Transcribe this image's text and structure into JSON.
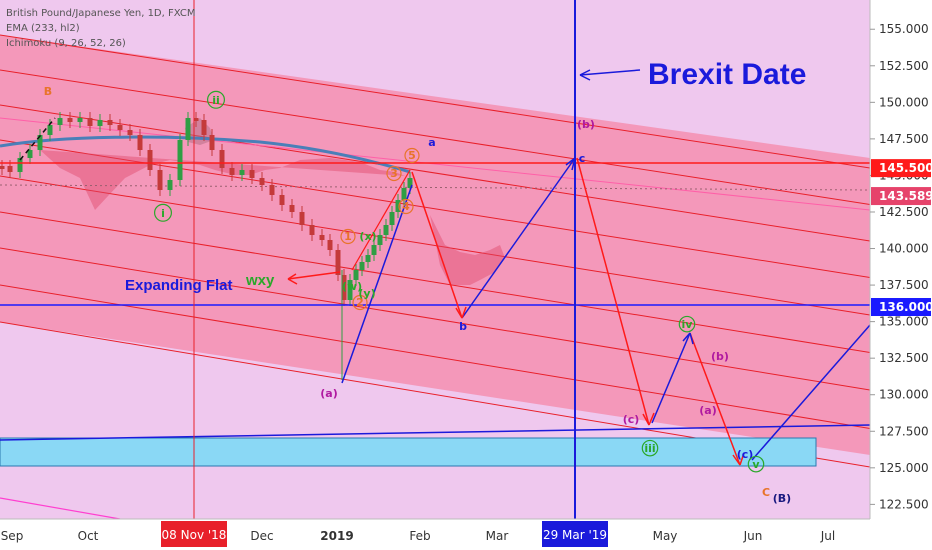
{
  "header": {
    "symbol": "British Pound/Japanese Yen, 1D, FXCM",
    "ema": "EMA (233, hl2)",
    "ichimoku": "Ichimoku (9, 26, 52, 26)"
  },
  "chart_data": {
    "type": "candlestick",
    "instrument": "GBP/JPY",
    "timeframe": "1D",
    "ylim": [
      121.5,
      157.0
    ],
    "y_ticks": [
      "155.000",
      "152.500",
      "150.000",
      "147.500",
      "145.000",
      "142.500",
      "140.000",
      "137.500",
      "135.000",
      "132.500",
      "130.000",
      "127.500",
      "125.000",
      "122.500"
    ],
    "x_ticks": [
      "Sep",
      "Oct",
      "Nov",
      "Dec",
      "2019",
      "Feb",
      "Mar",
      "Apr",
      "May",
      "Jun",
      "Jul"
    ],
    "x_bold": [
      "2019"
    ],
    "price_labels": [
      {
        "value": 145.5,
        "text": "145.500",
        "color": "#ff1a1a"
      },
      {
        "value": 143.589,
        "text": "143.589",
        "color": "#e6436b"
      },
      {
        "value": 136.0,
        "text": "136.000",
        "color": "#1a1aff"
      }
    ],
    "vertical_markers": [
      {
        "label": "08 Nov '18",
        "color": "#e8202a"
      },
      {
        "label": "29 Mar '19",
        "color": "#1a1adb"
      }
    ],
    "annotations": {
      "brexit": "Brexit Date",
      "expanding_flat": "Expanding Flat",
      "wxy": "wxy"
    },
    "wave_labels": [
      {
        "text": "B",
        "color": "#e8742a"
      },
      {
        "text": "ii",
        "color": "#2aa82a"
      },
      {
        "text": "i",
        "color": "#2aa82a"
      },
      {
        "text": "a",
        "color": "#1a1adb"
      },
      {
        "text": "b",
        "color": "#1a1adb"
      },
      {
        "text": "c",
        "color": "#1a1adb"
      },
      {
        "text": "(a)",
        "color": "#b01aa0"
      },
      {
        "text": "(b)",
        "color": "#b01aa0"
      },
      {
        "text": "(c)",
        "color": "#b01aa0"
      },
      {
        "text": "(b)",
        "color": "#b01aa0"
      },
      {
        "text": "(a)",
        "color": "#b01aa0"
      },
      {
        "text": "(c)",
        "color": "#1a1adb"
      },
      {
        "text": "iii",
        "color": "#2aa82a"
      },
      {
        "text": "iv",
        "color": "#2aa82a"
      },
      {
        "text": "v",
        "color": "#2aa82a"
      },
      {
        "text": "C",
        "color": "#e8742a"
      },
      {
        "text": "(B)",
        "color": "#1a1a80"
      },
      {
        "text": "1",
        "color": "#e8742a"
      },
      {
        "text": "2",
        "color": "#e8742a"
      },
      {
        "text": "3",
        "color": "#e8742a"
      },
      {
        "text": "4",
        "color": "#e8742a"
      },
      {
        "text": "5",
        "color": "#e8742a"
      },
      {
        "text": "(w)",
        "color": "#2aa82a"
      },
      {
        "text": "(x)",
        "color": "#2aa82a"
      },
      {
        "text": "(y)",
        "color": "#2aa82a"
      }
    ],
    "colors": {
      "background": "#efc8ee",
      "channel": "#f48fb0",
      "channel_line": "#e8202a",
      "bull": "#2f9e44",
      "bear": "#c43a3a",
      "ema": "#4a7fb8",
      "support_box": "#8ad8f5",
      "trendline": "#1a1adb"
    },
    "grid": false,
    "legend": "none"
  }
}
